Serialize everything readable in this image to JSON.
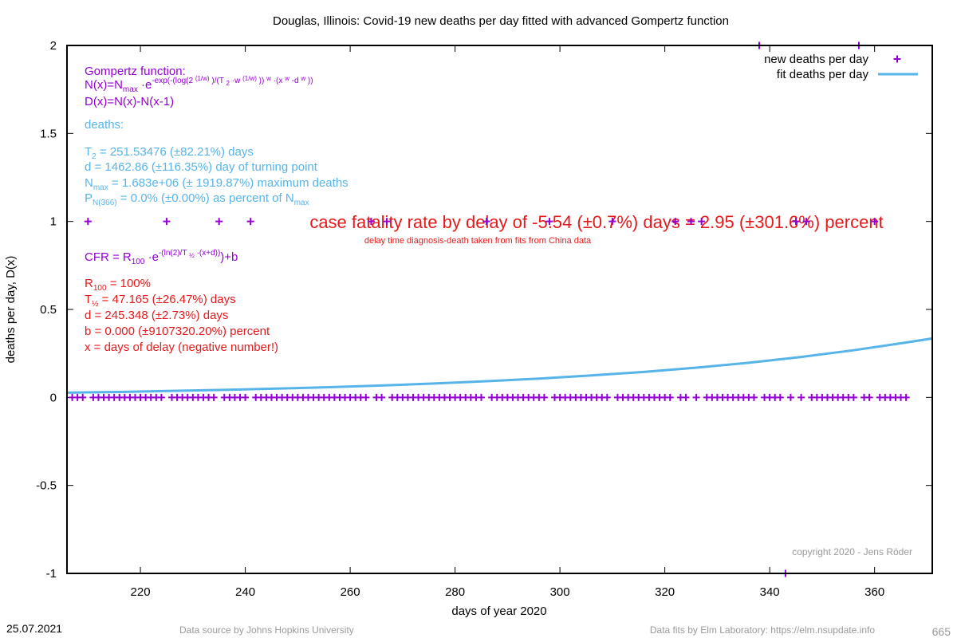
{
  "chart_data": {
    "type": "scatter",
    "title": "Douglas,  Illinois: Covid-19 new deaths per day fitted with advanced Gompertz function",
    "xlabel": "days of year 2020",
    "ylabel": "deaths per day, D(x)",
    "xlim": [
      206,
      371
    ],
    "ylim": [
      -1,
      2
    ],
    "xticks": [
      220,
      240,
      260,
      280,
      300,
      320,
      340,
      360
    ],
    "yticks": [
      -1,
      -0.5,
      0,
      0.5,
      1,
      1.5,
      2
    ],
    "legend": "top-right",
    "series": [
      {
        "name": "new deaths per day",
        "color": "#9400d3",
        "marker": "plus",
        "x": [
          207,
          208,
          209,
          210,
          211,
          212,
          213,
          214,
          215,
          216,
          217,
          218,
          219,
          220,
          221,
          222,
          223,
          224,
          225,
          226,
          227,
          228,
          229,
          230,
          231,
          232,
          233,
          234,
          235,
          236,
          237,
          238,
          239,
          240,
          241,
          242,
          243,
          244,
          245,
          246,
          247,
          248,
          249,
          250,
          251,
          252,
          253,
          254,
          255,
          256,
          257,
          258,
          259,
          260,
          261,
          262,
          263,
          264,
          265,
          266,
          267,
          268,
          269,
          270,
          271,
          272,
          273,
          274,
          275,
          276,
          277,
          278,
          279,
          280,
          281,
          282,
          283,
          284,
          285,
          286,
          287,
          288,
          289,
          290,
          291,
          292,
          293,
          294,
          295,
          296,
          297,
          298,
          299,
          300,
          301,
          302,
          303,
          304,
          305,
          306,
          307,
          308,
          309,
          310,
          311,
          312,
          313,
          314,
          315,
          316,
          317,
          318,
          319,
          320,
          321,
          322,
          323,
          324,
          325,
          326,
          327,
          328,
          329,
          330,
          331,
          332,
          333,
          334,
          335,
          336,
          337,
          338,
          339,
          340,
          341,
          342,
          343,
          344,
          345,
          346,
          347,
          348,
          349,
          350,
          351,
          352,
          353,
          354,
          355,
          356,
          357,
          358,
          359,
          360,
          361,
          362,
          363,
          364,
          365,
          366
        ],
        "values": [
          0,
          0,
          0,
          1,
          0,
          0,
          0,
          0,
          0,
          0,
          0,
          0,
          0,
          0,
          0,
          0,
          0,
          0,
          1,
          0,
          0,
          0,
          0,
          0,
          0,
          0,
          0,
          0,
          1,
          0,
          0,
          0,
          0,
          0,
          1,
          0,
          0,
          0,
          0,
          0,
          0,
          0,
          0,
          0,
          0,
          0,
          0,
          0,
          0,
          0,
          0,
          0,
          0,
          0,
          0,
          0,
          0,
          1,
          0,
          0,
          1,
          0,
          0,
          0,
          0,
          0,
          0,
          0,
          0,
          0,
          0,
          0,
          0,
          0,
          0,
          0,
          0,
          0,
          0,
          1,
          0,
          0,
          0,
          0,
          0,
          0,
          0,
          0,
          0,
          0,
          0,
          1,
          0,
          0,
          0,
          0,
          0,
          0,
          0,
          0,
          0,
          0,
          0,
          1,
          0,
          0,
          0,
          0,
          0,
          0,
          0,
          0,
          0,
          0,
          0,
          1,
          0,
          0,
          1,
          0,
          1,
          0,
          0,
          0,
          0,
          0,
          0,
          0,
          0,
          0,
          0,
          2,
          0,
          0,
          0,
          0,
          -1,
          0,
          1,
          0,
          1,
          0,
          0,
          0,
          0,
          0,
          0,
          0,
          0,
          0,
          2,
          0,
          0,
          1,
          0,
          0,
          0,
          0,
          0,
          0
        ]
      },
      {
        "name": "fit deaths per day",
        "color": "#56b4e9",
        "marker": "line",
        "x": [
          206,
          216,
          226,
          236,
          246,
          256,
          266,
          276,
          286,
          296,
          306,
          316,
          326,
          336,
          346,
          356,
          366,
          371
        ],
        "values": [
          0.027,
          0.031,
          0.037,
          0.043,
          0.05,
          0.058,
          0.068,
          0.079,
          0.092,
          0.107,
          0.125,
          0.145,
          0.169,
          0.197,
          0.23,
          0.268,
          0.312,
          0.335
        ]
      }
    ],
    "annotations": {
      "gompertz_heading": "Gompertz function:",
      "formula_n": [
        "N(x)=N",
        "max",
        " ·e",
        "-exp(-(log(2 ",
        "(1/w)",
        " )/(T ",
        "2",
        " ·w ",
        "(1/w)",
        " )) ",
        "w",
        " ·(x ",
        "w",
        " -d ",
        "w",
        " ))"
      ],
      "formula_d": "D(x)=N(x)-N(x-1)",
      "deaths_heading": "deaths:",
      "t2": [
        "T",
        "2",
        " = 251.53476 (±82.21%) days"
      ],
      "d_turn": "d = 1462.86 (±116.35%) day of turning point",
      "nmax": [
        "N",
        "max",
        " = 1.683e+06 (± 1919.87%) maximum deaths"
      ],
      "p": [
        "P",
        "N(366)",
        " = 0.0% (±0.00%) as percent of N",
        "max"
      ],
      "cfr_main": "case fatality rate by delay of -5.54 (±0.7%) days = 2.95 (±301.6%) percent",
      "cfr_note": "delay time diagnosis-death taken from fits from China data",
      "cfr_formula": [
        "CFR = R",
        "100",
        " ·e",
        "-(ln(2)/T ",
        "½",
        " ·(x+d))",
        ")+b"
      ],
      "r100": [
        "R",
        "100",
        " = 100%"
      ],
      "thalf": [
        "T",
        "½",
        " = 47.165 (±26.47%) days"
      ],
      "d_delay": "d = 245.348 (±2.73%) days",
      "b": "b = 0.000 (±9107320.20%) percent",
      "x_def": "x = days of delay (negative number!)",
      "copyright": "copyright 2020 - Jens Röder"
    },
    "footer": {
      "date": "25.07.2021",
      "source": "Data source by Johns Hopkins University",
      "fits": "Data fits by Elm Laboratory: https://elm.nsupdate.info",
      "number": "665"
    }
  }
}
